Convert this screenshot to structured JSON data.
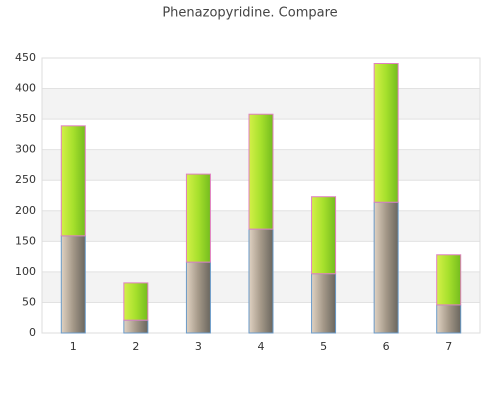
{
  "chart_data": {
    "type": "stacked_bar",
    "title": "Phenazopyridine. Compare",
    "categories": [
      "1",
      "2",
      "3",
      "4",
      "5",
      "6",
      "7"
    ],
    "series": [
      {
        "color": "#a49888",
        "values": [
          159,
          21,
          116,
          170,
          97,
          214,
          46
        ]
      },
      {
        "color": "#a6e02c",
        "values": [
          180,
          61,
          144,
          188,
          126,
          227,
          82
        ]
      }
    ],
    "ylim": [
      0,
      450
    ],
    "yticks": [
      0,
      50,
      100,
      150,
      200,
      250,
      300,
      350,
      400,
      450
    ],
    "grid": true
  }
}
